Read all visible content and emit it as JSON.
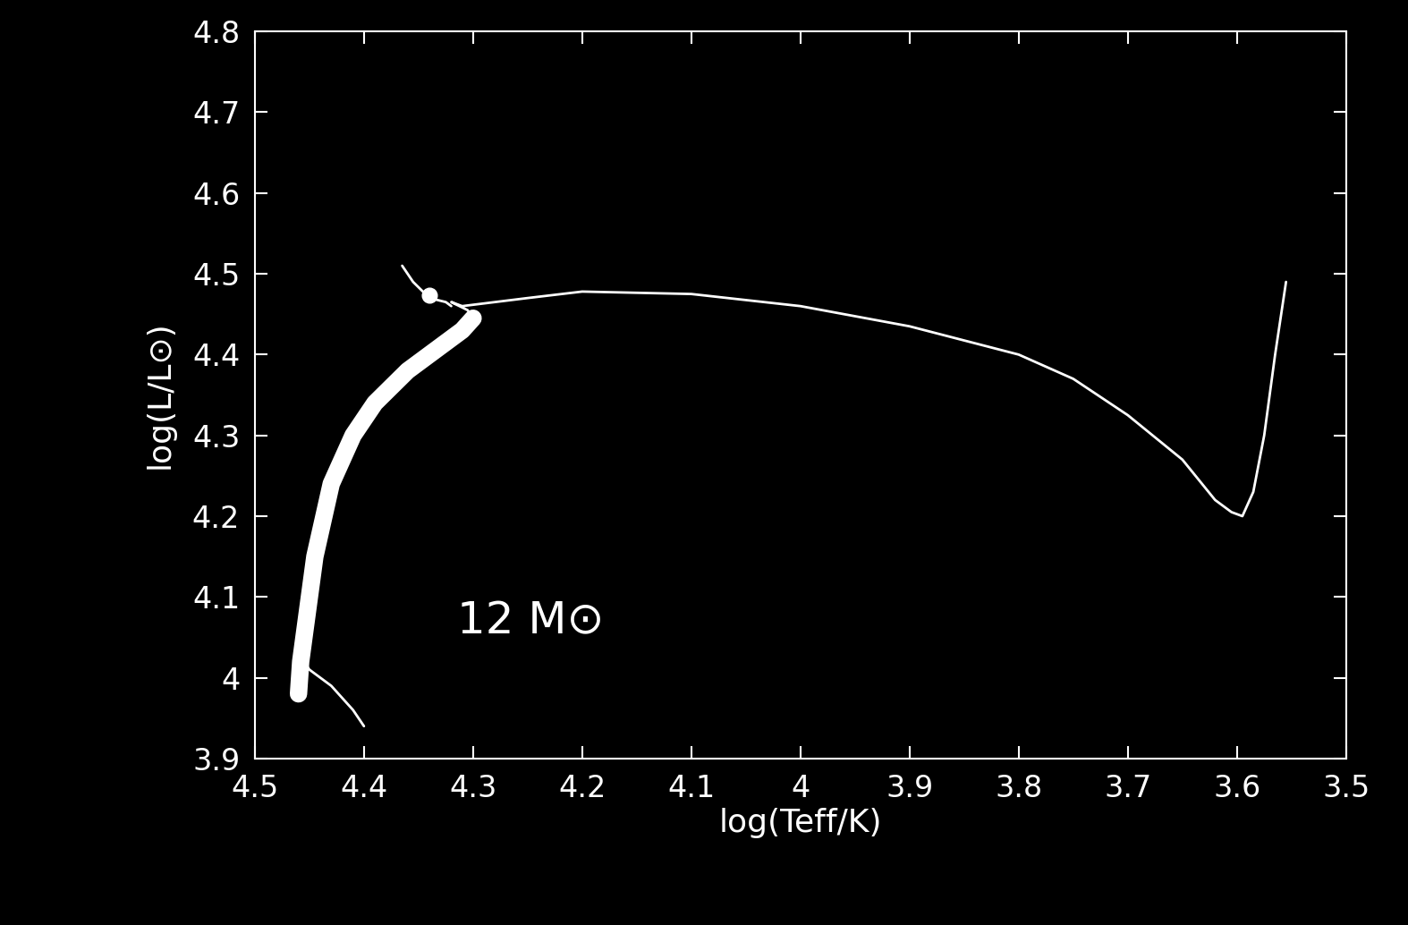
{
  "chart_data": {
    "type": "line",
    "xlabel": "log(Teff/K)",
    "ylabel": "log(L/L⊙)",
    "annotation": {
      "text": "12 M⊙",
      "x": 4.18,
      "y": 4.07
    },
    "color": "#ffffff",
    "xlim": [
      4.5,
      3.5
    ],
    "ylim": [
      3.9,
      4.8
    ],
    "xticks": [
      4.5,
      4.4,
      4.3,
      4.2,
      4.1,
      4,
      3.9,
      3.8,
      3.7,
      3.6,
      3.5
    ],
    "yticks": [
      3.9,
      4,
      4.1,
      4.2,
      4.3,
      4.4,
      4.5,
      4.6,
      4.7,
      4.8
    ],
    "grid": false,
    "series": [
      {
        "x": [
          4.4,
          4.41,
          4.43,
          4.45,
          4.46,
          4.455
        ],
        "y": [
          3.94,
          3.96,
          3.99,
          4.01,
          4.03,
          4.0
        ],
        "line_style": "solid"
      },
      {
        "x": [
          4.46,
          4.458,
          4.452,
          4.445,
          4.43,
          4.41,
          4.39,
          4.36,
          4.33,
          4.31,
          4.3
        ],
        "y": [
          3.98,
          4.02,
          4.08,
          4.15,
          4.24,
          4.3,
          4.34,
          4.38,
          4.41,
          4.43,
          4.445
        ],
        "line_style": "thick"
      },
      {
        "x": [
          4.3,
          4.305,
          4.32,
          4.31,
          4.25,
          4.2,
          4.1,
          4.0,
          3.9,
          3.8,
          3.75,
          3.7,
          3.65,
          3.62,
          3.605,
          3.595,
          3.585,
          3.575,
          3.565,
          3.555
        ],
        "y": [
          4.445,
          4.455,
          4.465,
          4.46,
          4.47,
          4.478,
          4.475,
          4.46,
          4.435,
          4.4,
          4.37,
          4.325,
          4.27,
          4.22,
          4.205,
          4.2,
          4.23,
          4.3,
          4.4,
          4.49
        ],
        "line_style": "solid"
      },
      {
        "x": [
          4.365,
          4.355,
          4.34,
          4.325,
          4.32
        ],
        "y": [
          4.51,
          4.49,
          4.47,
          4.465,
          4.46
        ],
        "line_style": "solid"
      },
      {
        "x": [
          4.34
        ],
        "y": [
          4.473
        ],
        "marker": "o"
      }
    ]
  }
}
